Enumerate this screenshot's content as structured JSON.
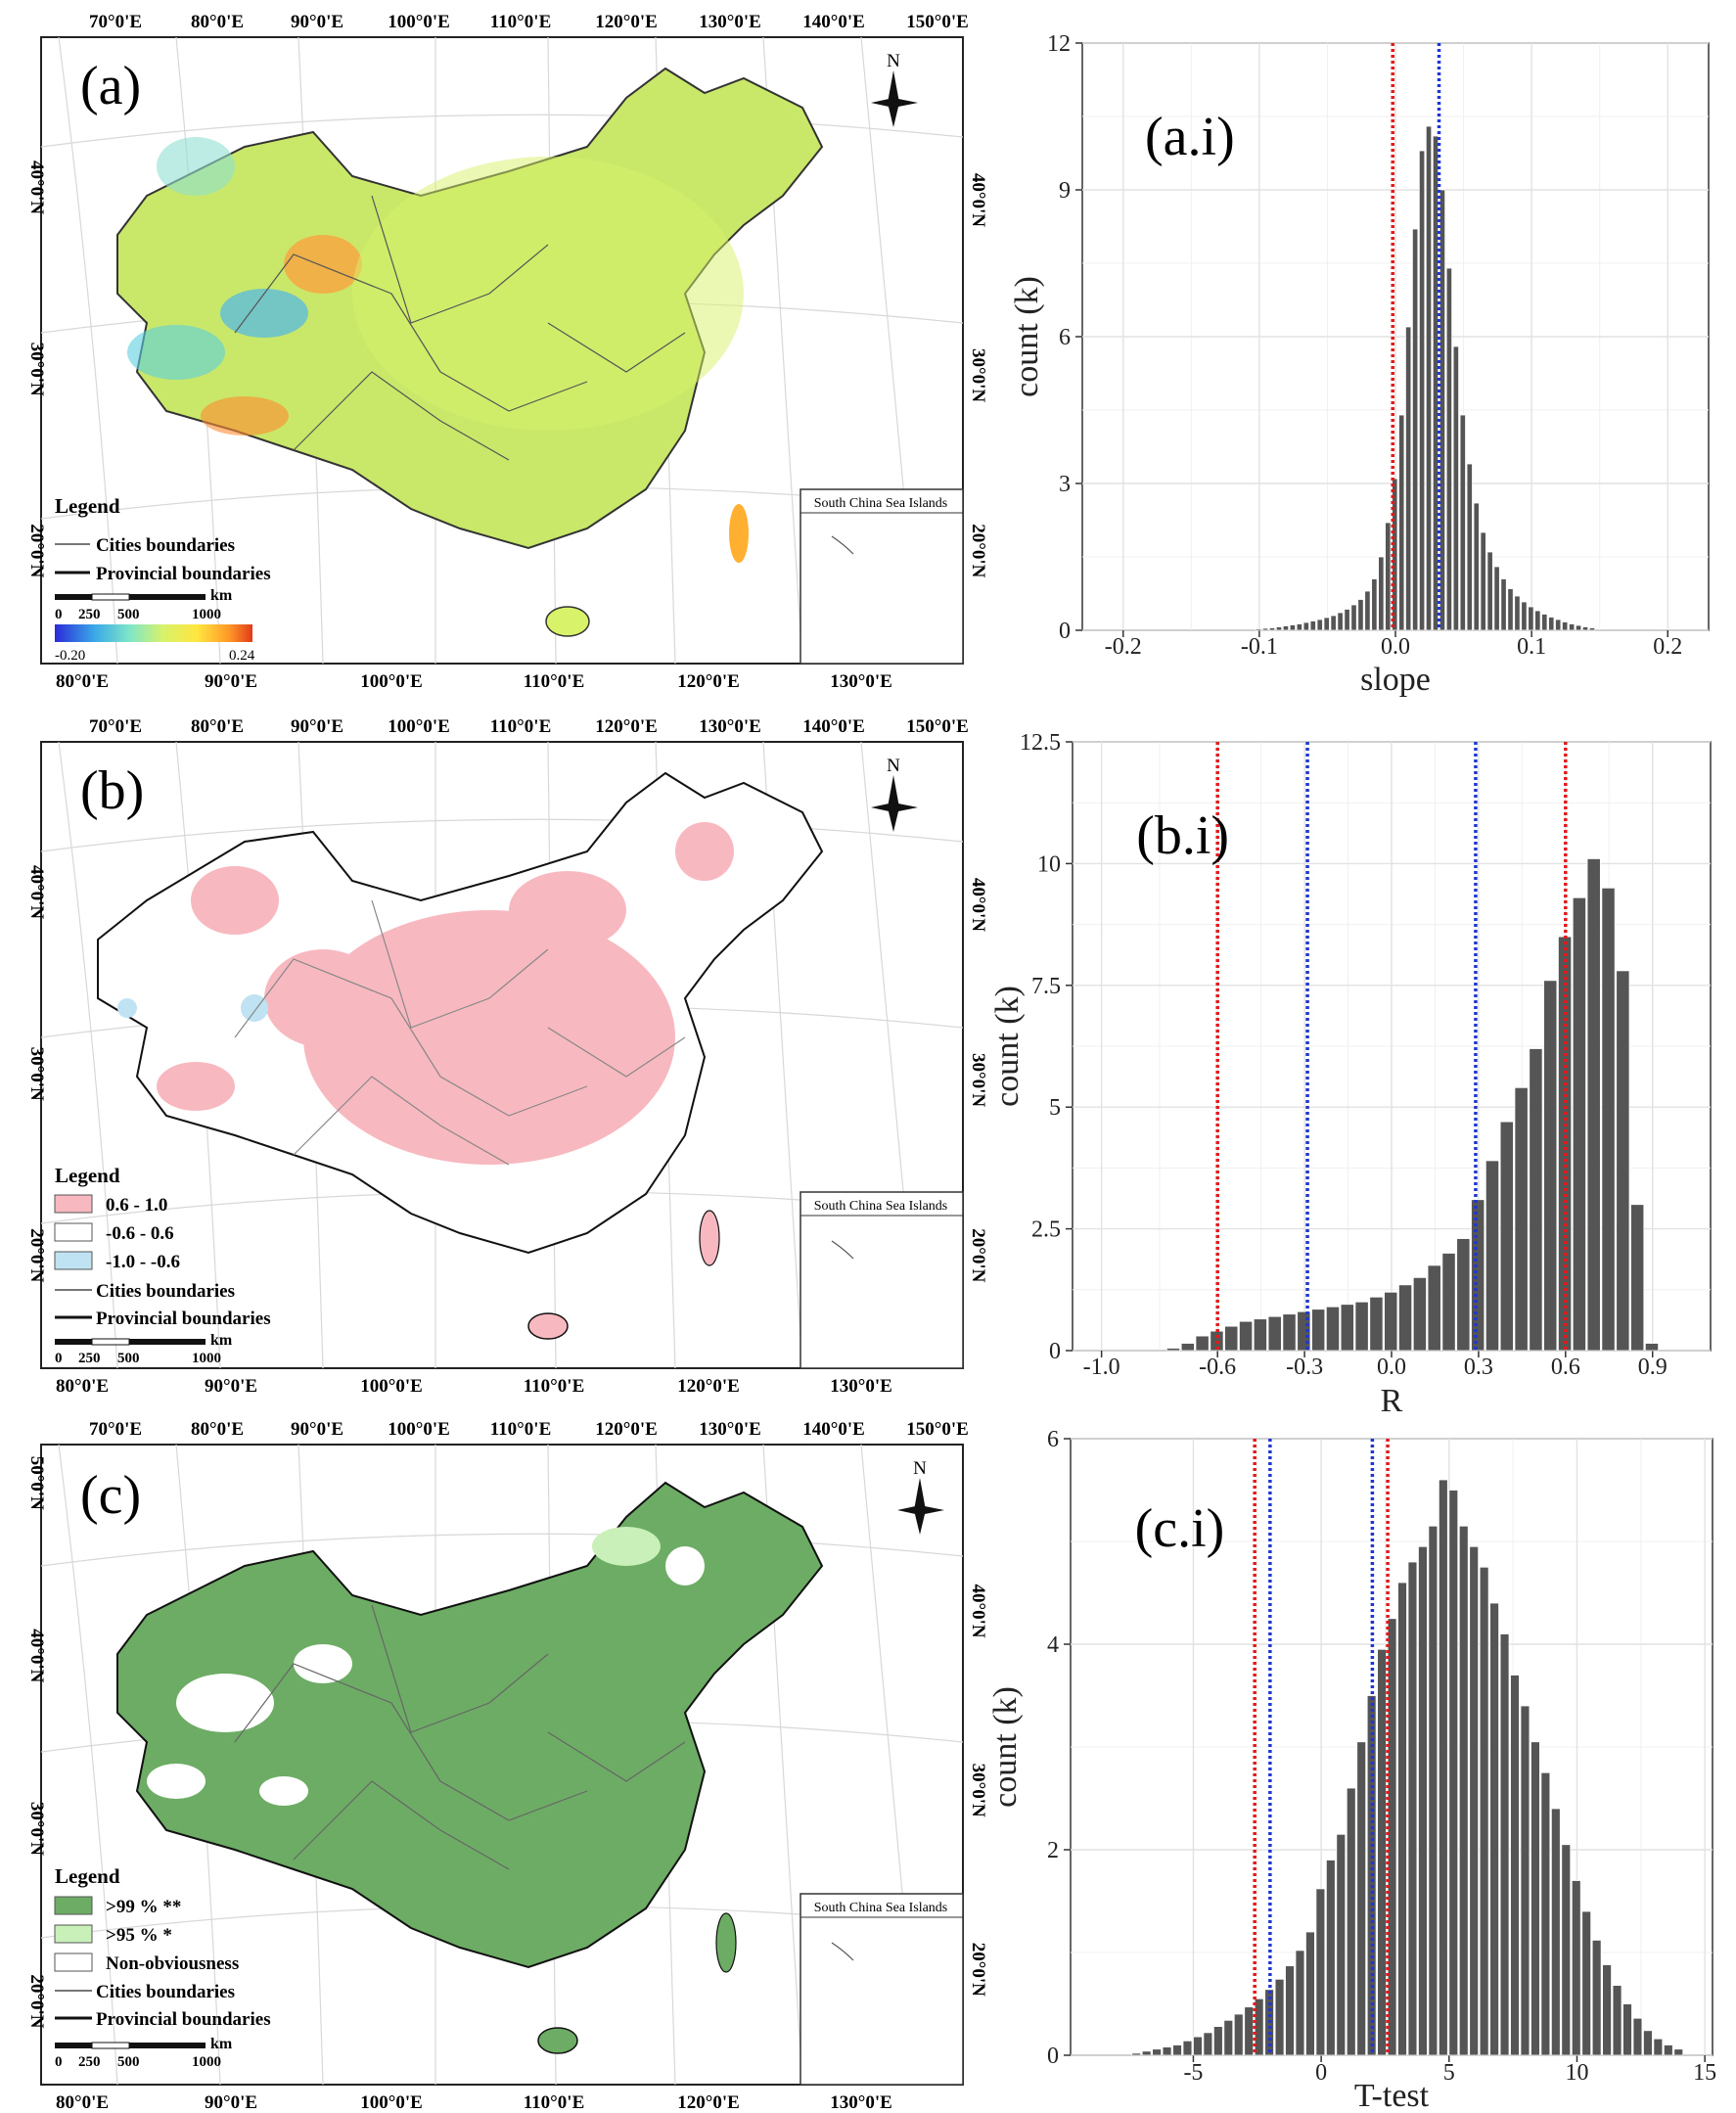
{
  "maps": [
    {
      "panel_label": "(a)",
      "top_lon_labels": [
        "70°0'E",
        "80°0'E",
        "90°0'E",
        "100°0'E",
        "110°0'E",
        "120°0'E",
        "130°0'E",
        "140°0'E",
        "150°0'E"
      ],
      "bottom_lon_labels": [
        "80°0'E",
        "90°0'E",
        "100°0'E",
        "110°0'E",
        "120°0'E",
        "130°0'E"
      ],
      "left_lat_labels": [
        "40°0'N",
        "30°0'N",
        "20°0'N"
      ],
      "right_lat_labels": [
        "40°0'N",
        "30°0'N",
        "20°0'N"
      ],
      "north_label": "N",
      "legend": {
        "title": "Legend",
        "items": [
          "Cities boundaries",
          "Provincial boundaries"
        ],
        "scale_unit": "km",
        "scale_ticks": [
          "0",
          "250",
          "500",
          "1000"
        ],
        "colorbar_min": "-0.20",
        "colorbar_max": "0.24"
      },
      "inset_title": "South China Sea Islands"
    },
    {
      "panel_label": "(b)",
      "top_lon_labels": [
        "70°0'E",
        "80°0'E",
        "90°0'E",
        "100°0'E",
        "110°0'E",
        "120°0'E",
        "130°0'E",
        "140°0'E",
        "150°0'E"
      ],
      "bottom_lon_labels": [
        "80°0'E",
        "90°0'E",
        "100°0'E",
        "110°0'E",
        "120°0'E",
        "130°0'E"
      ],
      "left_lat_labels": [
        "40°0'N",
        "30°0'N",
        "20°0'N"
      ],
      "right_lat_labels": [
        "40°0'N",
        "30°0'N",
        "20°0'N"
      ],
      "north_label": "N",
      "legend": {
        "title": "Legend",
        "classes": [
          {
            "label": "0.6 - 1.0",
            "color": "#f8b8c0"
          },
          {
            "label": "-0.6 - 0.6",
            "color": "#ffffff"
          },
          {
            "label": "-1.0 - -0.6",
            "color": "#bfe3f2"
          }
        ],
        "items": [
          "Cities boundaries",
          "Provincial boundaries"
        ],
        "scale_unit": "km",
        "scale_ticks": [
          "0",
          "250",
          "500",
          "1000"
        ]
      },
      "inset_title": "South China Sea Islands"
    },
    {
      "panel_label": "(c)",
      "top_lon_labels": [
        "70°0'E",
        "80°0'E",
        "90°0'E",
        "100°0'E",
        "110°0'E",
        "120°0'E",
        "130°0'E",
        "140°0'E",
        "150°0'E"
      ],
      "bottom_lon_labels": [
        "80°0'E",
        "90°0'E",
        "100°0'E",
        "110°0'E",
        "120°0'E",
        "130°0'E"
      ],
      "left_lat_labels": [
        "50°0'N",
        "40°0'N",
        "30°0'N",
        "20°0'N"
      ],
      "right_lat_labels": [
        "40°0'N",
        "30°0'N",
        "20°0'N"
      ],
      "north_label": "N",
      "legend": {
        "title": "Legend",
        "classes": [
          {
            "label": ">99 % **",
            "color": "#6cac64"
          },
          {
            "label": ">95 % *",
            "color": "#c8f0b8"
          },
          {
            "label": "Non-obviousness",
            "color": "#ffffff"
          }
        ],
        "items": [
          "Cities boundaries",
          "Provincial boundaries"
        ],
        "scale_unit": "km",
        "scale_ticks": [
          "0",
          "250",
          "500",
          "1000"
        ]
      },
      "inset_title": "South China Sea Islands"
    }
  ],
  "chart_data": [
    {
      "type": "bar",
      "panel_label": "(a.i)",
      "xlabel": "slope",
      "ylabel": "count (k)",
      "xlim": [
        -0.23,
        0.23
      ],
      "ylim": [
        0,
        12
      ],
      "xticks": [
        -0.2,
        -0.1,
        0.0,
        0.1,
        0.2
      ],
      "xtick_labels": [
        "-0.2",
        "-0.1",
        "0.0",
        "0.1",
        "0.2"
      ],
      "yticks": [
        0,
        3,
        6,
        9,
        12
      ],
      "ytick_labels": [
        "0",
        "3",
        "6",
        "9",
        "12"
      ],
      "bin_width": 0.005,
      "bin_centers": [
        -0.1,
        -0.095,
        -0.09,
        -0.085,
        -0.08,
        -0.075,
        -0.07,
        -0.065,
        -0.06,
        -0.055,
        -0.05,
        -0.045,
        -0.04,
        -0.035,
        -0.03,
        -0.025,
        -0.02,
        -0.015,
        -0.01,
        -0.005,
        0.0,
        0.005,
        0.01,
        0.015,
        0.02,
        0.025,
        0.03,
        0.035,
        0.04,
        0.045,
        0.05,
        0.055,
        0.06,
        0.065,
        0.07,
        0.075,
        0.08,
        0.085,
        0.09,
        0.095,
        0.1,
        0.105,
        0.11,
        0.115,
        0.12,
        0.125,
        0.13,
        0.135,
        0.14,
        0.145
      ],
      "values": [
        0.03,
        0.04,
        0.05,
        0.07,
        0.09,
        0.11,
        0.13,
        0.16,
        0.19,
        0.22,
        0.26,
        0.3,
        0.36,
        0.43,
        0.52,
        0.63,
        0.8,
        1.05,
        1.5,
        2.2,
        3.1,
        4.4,
        6.2,
        8.2,
        9.8,
        10.3,
        10.1,
        9.0,
        7.4,
        5.8,
        4.4,
        3.4,
        2.6,
        2.0,
        1.6,
        1.3,
        1.05,
        0.85,
        0.7,
        0.58,
        0.48,
        0.4,
        0.33,
        0.27,
        0.22,
        0.17,
        0.13,
        0.1,
        0.07,
        0.05
      ],
      "vlines": [
        {
          "x": -0.002,
          "color": "#e31a1c"
        },
        {
          "x": 0.032,
          "color": "#1f36d6"
        }
      ]
    },
    {
      "type": "bar",
      "panel_label": "(b.i)",
      "xlabel": "R",
      "ylabel": "count (k)",
      "xlim": [
        -1.1,
        1.1
      ],
      "ylim": [
        0,
        12.5
      ],
      "xticks": [
        -1.0,
        -0.6,
        -0.3,
        0.0,
        0.3,
        0.6,
        0.9
      ],
      "xtick_labels": [
        "-1.0",
        "-0.6",
        "-0.3",
        "0.0",
        "0.3",
        "0.6",
        "0.9"
      ],
      "yticks": [
        0,
        2.5,
        5,
        7.5,
        10,
        12.5
      ],
      "ytick_labels": [
        "0",
        "2.5",
        "5",
        "7.5",
        "10",
        "12.5"
      ],
      "bin_width": 0.05,
      "bin_centers": [
        -0.75,
        -0.7,
        -0.65,
        -0.6,
        -0.55,
        -0.5,
        -0.45,
        -0.4,
        -0.35,
        -0.3,
        -0.25,
        -0.2,
        -0.15,
        -0.1,
        -0.05,
        0.0,
        0.05,
        0.1,
        0.15,
        0.2,
        0.25,
        0.3,
        0.35,
        0.4,
        0.45,
        0.5,
        0.55,
        0.6,
        0.65,
        0.7,
        0.75,
        0.8,
        0.85,
        0.9
      ],
      "values": [
        0.05,
        0.15,
        0.3,
        0.4,
        0.5,
        0.6,
        0.65,
        0.7,
        0.75,
        0.8,
        0.85,
        0.9,
        0.95,
        1.0,
        1.1,
        1.2,
        1.35,
        1.5,
        1.75,
        2.0,
        2.3,
        3.1,
        3.9,
        4.7,
        5.4,
        6.2,
        7.6,
        8.5,
        9.3,
        10.1,
        9.5,
        7.8,
        3.0,
        0.15
      ],
      "vlines": [
        {
          "x": -0.6,
          "color": "#e31a1c"
        },
        {
          "x": -0.29,
          "color": "#1f36d6"
        },
        {
          "x": 0.29,
          "color": "#1f36d6"
        },
        {
          "x": 0.6,
          "color": "#e31a1c"
        }
      ]
    },
    {
      "type": "bar",
      "panel_label": "(c.i)",
      "xlabel": "T-test",
      "ylabel": "count (k)",
      "xlim": [
        -9.8,
        15.3
      ],
      "ylim": [
        0,
        6
      ],
      "xticks": [
        -5,
        0,
        5,
        10,
        15
      ],
      "xtick_labels": [
        "-5",
        "0",
        "5",
        "10",
        "15"
      ],
      "yticks": [
        0,
        2,
        4,
        6
      ],
      "ytick_labels": [
        "0",
        "2",
        "4",
        "6"
      ],
      "bin_width": 0.4,
      "bin_centers": [
        -7.2,
        -6.8,
        -6.4,
        -6.0,
        -5.6,
        -5.2,
        -4.8,
        -4.4,
        -4.0,
        -3.6,
        -3.2,
        -2.8,
        -2.4,
        -2.0,
        -1.6,
        -1.2,
        -0.8,
        -0.4,
        0.0,
        0.4,
        0.8,
        1.2,
        1.6,
        2.0,
        2.4,
        2.8,
        3.2,
        3.6,
        4.0,
        4.4,
        4.8,
        5.2,
        5.6,
        6.0,
        6.4,
        6.8,
        7.2,
        7.6,
        8.0,
        8.4,
        8.8,
        9.2,
        9.6,
        10.0,
        10.4,
        10.8,
        11.2,
        11.6,
        12.0,
        12.4,
        12.8,
        13.2,
        13.6,
        14.0
      ],
      "values": [
        0.02,
        0.04,
        0.06,
        0.08,
        0.1,
        0.14,
        0.18,
        0.22,
        0.28,
        0.34,
        0.4,
        0.47,
        0.55,
        0.64,
        0.74,
        0.87,
        1.02,
        1.2,
        1.62,
        1.9,
        2.15,
        2.6,
        3.05,
        3.5,
        3.95,
        4.25,
        4.6,
        4.8,
        4.95,
        5.15,
        5.6,
        5.5,
        5.15,
        4.95,
        4.75,
        4.4,
        4.1,
        3.7,
        3.4,
        3.05,
        2.75,
        2.4,
        2.05,
        1.7,
        1.4,
        1.12,
        0.88,
        0.68,
        0.5,
        0.36,
        0.24,
        0.16,
        0.1,
        0.06
      ],
      "vlines": [
        {
          "x": -2.6,
          "color": "#e31a1c"
        },
        {
          "x": -2.0,
          "color": "#1f36d6"
        },
        {
          "x": 2.0,
          "color": "#1f36d6"
        },
        {
          "x": 2.6,
          "color": "#e31a1c"
        }
      ]
    }
  ]
}
